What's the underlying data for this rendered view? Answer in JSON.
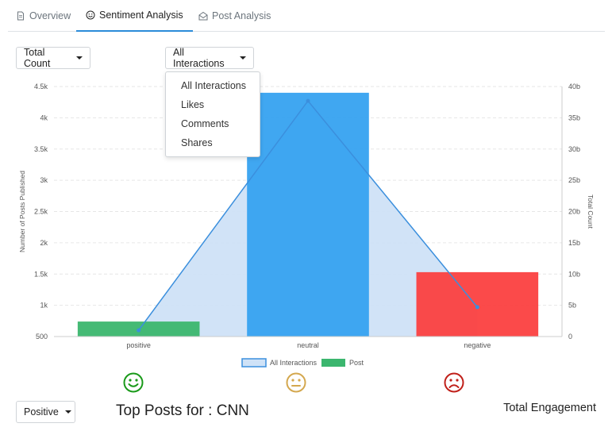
{
  "tabs": [
    {
      "label": "Overview",
      "icon": "document-icon"
    },
    {
      "label": "Sentiment Analysis",
      "icon": "smiley-icon"
    },
    {
      "label": "Post Analysis",
      "icon": "envelope-open-icon"
    }
  ],
  "controls": {
    "metric_label": "Total Count",
    "interactions_label": "All Interactions",
    "sentiment_label": "Positive"
  },
  "menu": {
    "items": [
      "All Interactions",
      "Likes",
      "Comments",
      "Shares"
    ]
  },
  "chart_data": {
    "type": "bar",
    "categories": [
      "positive",
      "neutral",
      "negative"
    ],
    "series": [
      {
        "name": "Post",
        "type": "bar",
        "axis": "left",
        "values": [
          740,
          4400,
          1530
        ]
      },
      {
        "name": "All Interactions",
        "type": "area",
        "axis": "right",
        "values": [
          1000000000,
          37700000000,
          4700000000
        ]
      }
    ],
    "ylabel": "Number of Posts Published",
    "y2label": "Total Count",
    "ylim": [
      500,
      4500
    ],
    "y2lim": [
      0,
      40000000000
    ],
    "yticks": [
      "500",
      "1k",
      "1.5k",
      "2k",
      "2.5k",
      "3k",
      "3.5k",
      "4k",
      "4.5k"
    ],
    "y2ticks": [
      "0",
      "5b",
      "10b",
      "15b",
      "20b",
      "25b",
      "30b",
      "35b",
      "40b"
    ],
    "bar_colors": [
      "#3bb66e",
      "#36a2f0",
      "#fb4040"
    ],
    "area_fill": "#cfe2f7",
    "line_color": "#3b8fdd",
    "legend_position": "bottom",
    "grid": true
  },
  "summary": {
    "faces": [
      "positive",
      "neutral",
      "negative"
    ],
    "face_colors": [
      "#1a9a1a",
      "#d4a84f",
      "#c0201a"
    ],
    "top_posts_title": "Top Posts for : CNN",
    "total_engagement_label": "Total Engagement"
  }
}
